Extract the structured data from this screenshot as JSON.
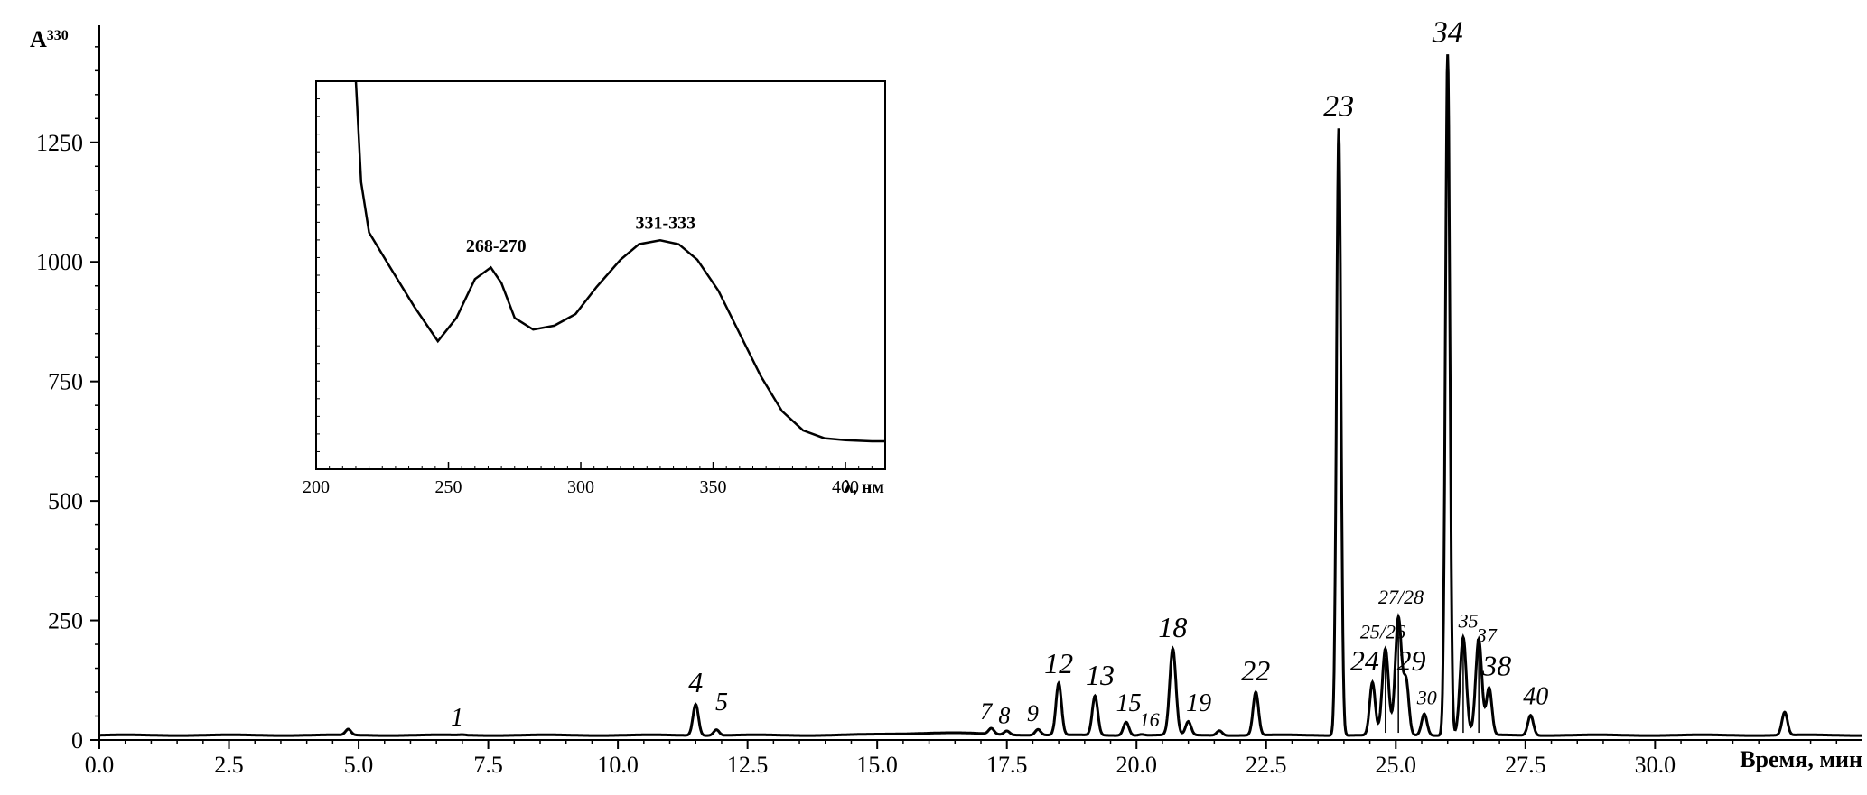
{
  "chart_data": [
    {
      "id": "chromatogram",
      "type": "line",
      "ylabel_main": "A",
      "ylabel_sup": "330",
      "xlabel": "Время, мин",
      "xlim": [
        0,
        33
      ],
      "ylim": [
        0,
        1350
      ],
      "x_ticks": [
        "0.0",
        "2.5",
        "5.0",
        "7.5",
        "10.0",
        "12.5",
        "15.0",
        "17.5",
        "20.0",
        "22.5",
        "25.0",
        "27.5",
        "30.0"
      ],
      "y_ticks": [
        "0",
        "250",
        "500",
        "750",
        "1000",
        "1250"
      ],
      "baseline": 10,
      "peaks": [
        {
          "label": "1",
          "x": 7.0,
          "y": 11,
          "lx": 6.9,
          "ly": 30,
          "size": 28
        },
        {
          "label": "",
          "x": 4.8,
          "y": 22,
          "lx": 4.8,
          "ly": 0,
          "size": 0
        },
        {
          "label": "4",
          "x": 11.5,
          "y": 75,
          "lx": 11.5,
          "ly": 100,
          "size": 32
        },
        {
          "label": "5",
          "x": 11.9,
          "y": 22,
          "lx": 12.0,
          "ly": 62,
          "size": 28
        },
        {
          "label": "7",
          "x": 17.2,
          "y": 22,
          "lx": 17.1,
          "ly": 43,
          "size": 26
        },
        {
          "label": "8",
          "x": 17.5,
          "y": 18,
          "lx": 17.45,
          "ly": 35,
          "size": 26
        },
        {
          "label": "9",
          "x": 18.1,
          "y": 22,
          "lx": 18.0,
          "ly": 40,
          "size": 26
        },
        {
          "label": "12",
          "x": 18.5,
          "y": 118,
          "lx": 18.5,
          "ly": 140,
          "size": 32
        },
        {
          "label": "13",
          "x": 19.2,
          "y": 92,
          "lx": 19.3,
          "ly": 115,
          "size": 32
        },
        {
          "label": "15",
          "x": 19.8,
          "y": 38,
          "lx": 19.85,
          "ly": 60,
          "size": 28
        },
        {
          "label": "16",
          "x": 20.1,
          "y": 12,
          "lx": 20.25,
          "ly": 28,
          "size": 22
        },
        {
          "label": "18",
          "x": 20.7,
          "y": 190,
          "lx": 20.7,
          "ly": 215,
          "size": 32
        },
        {
          "label": "19",
          "x": 21.0,
          "y": 38,
          "lx": 21.2,
          "ly": 60,
          "size": 28
        },
        {
          "label": "",
          "x": 21.6,
          "y": 20,
          "lx": 21.6,
          "ly": 0,
          "size": 0
        },
        {
          "label": "22",
          "x": 22.3,
          "y": 100,
          "lx": 22.3,
          "ly": 125,
          "size": 32
        },
        {
          "label": "23",
          "x": 23.9,
          "y": 1280,
          "lx": 23.9,
          "ly": 1305,
          "size": 34
        },
        {
          "label": "24",
          "x": 24.55,
          "y": 120,
          "lx": 24.4,
          "ly": 145,
          "size": 32
        },
        {
          "label": "25/26",
          "x": 24.8,
          "y": 190,
          "lx": 24.75,
          "ly": 212,
          "size": 22
        },
        {
          "label": "27/28",
          "x": 25.05,
          "y": 255,
          "lx": 25.1,
          "ly": 285,
          "size": 22
        },
        {
          "label": "29",
          "x": 25.2,
          "y": 120,
          "lx": 25.3,
          "ly": 145,
          "size": 32
        },
        {
          "label": "30",
          "x": 25.55,
          "y": 55,
          "lx": 25.6,
          "ly": 75,
          "size": 22
        },
        {
          "label": "34",
          "x": 26.0,
          "y": 1435,
          "lx": 26.0,
          "ly": 1460,
          "size": 34
        },
        {
          "label": "35",
          "x": 26.3,
          "y": 215,
          "lx": 26.4,
          "ly": 235,
          "size": 22
        },
        {
          "label": "37",
          "x": 26.6,
          "y": 210,
          "lx": 26.75,
          "ly": 205,
          "size": 22
        },
        {
          "label": "38",
          "x": 26.8,
          "y": 108,
          "lx": 26.95,
          "ly": 135,
          "size": 32
        },
        {
          "label": "40",
          "x": 27.6,
          "y": 52,
          "lx": 27.7,
          "ly": 75,
          "size": 28
        },
        {
          "label": "",
          "x": 32.5,
          "y": 58,
          "lx": 32.5,
          "ly": 0,
          "size": 0
        }
      ]
    },
    {
      "id": "uv-spectrum-inset",
      "type": "line",
      "xlabel": "λ, нм",
      "xlim": [
        200,
        415
      ],
      "x_ticks": [
        "200",
        "250",
        "300",
        "350",
        "400"
      ],
      "points": [
        [
          215,
          1.02
        ],
        [
          217,
          0.74
        ],
        [
          220,
          0.61
        ],
        [
          228,
          0.52
        ],
        [
          237,
          0.42
        ],
        [
          246,
          0.33
        ],
        [
          253,
          0.39
        ],
        [
          260,
          0.49
        ],
        [
          266,
          0.52
        ],
        [
          270,
          0.48
        ],
        [
          275,
          0.39
        ],
        [
          282,
          0.36
        ],
        [
          290,
          0.37
        ],
        [
          298,
          0.4
        ],
        [
          306,
          0.47
        ],
        [
          315,
          0.54
        ],
        [
          322,
          0.58
        ],
        [
          330,
          0.59
        ],
        [
          337,
          0.58
        ],
        [
          344,
          0.54
        ],
        [
          352,
          0.46
        ],
        [
          360,
          0.35
        ],
        [
          368,
          0.24
        ],
        [
          376,
          0.15
        ],
        [
          384,
          0.1
        ],
        [
          392,
          0.08
        ],
        [
          400,
          0.075
        ],
        [
          410,
          0.072
        ],
        [
          415,
          0.072
        ]
      ],
      "annotations": [
        {
          "text": "268-270",
          "x": 268,
          "y": 0.56
        },
        {
          "text": "331-333",
          "x": 332,
          "y": 0.62
        }
      ]
    }
  ]
}
